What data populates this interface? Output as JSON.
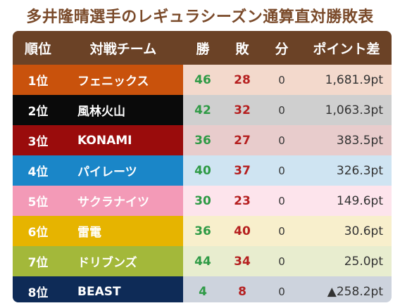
{
  "title": "多井隆晴選手のレギュラシーズン通算直対勝敗表",
  "headers": {
    "rank": "順位",
    "team": "対戦チーム",
    "win": "勝",
    "lose": "敗",
    "draw": "分",
    "points": "ポイント差"
  },
  "rows": [
    {
      "rank": "1位",
      "team": "フェニックス",
      "win": "46",
      "lose": "28",
      "draw": "0",
      "points": "1,681.9pt",
      "team_color": "#c9520c",
      "row_bg": "#f3d9cc"
    },
    {
      "rank": "2位",
      "team": "風林火山",
      "win": "42",
      "lose": "32",
      "draw": "0",
      "points": "1,063.3pt",
      "team_color": "#0a0a0a",
      "row_bg": "#cfcfcf"
    },
    {
      "rank": "3位",
      "team": "KONAMI",
      "win": "36",
      "lose": "27",
      "draw": "0",
      "points": "383.5pt",
      "team_color": "#9a0c0c",
      "row_bg": "#e8cccc"
    },
    {
      "rank": "4位",
      "team": "パイレーツ",
      "win": "40",
      "lose": "37",
      "draw": "0",
      "points": "326.3pt",
      "team_color": "#1a86c8",
      "row_bg": "#cfe4f2"
    },
    {
      "rank": "5位",
      "team": "サクラナイツ",
      "win": "30",
      "lose": "23",
      "draw": "0",
      "points": "149.6pt",
      "team_color": "#f39ab7",
      "row_bg": "#fde4ec"
    },
    {
      "rank": "6位",
      "team": "雷電",
      "win": "36",
      "lose": "40",
      "draw": "0",
      "points": "30.6pt",
      "team_color": "#e6b400",
      "row_bg": "#f8efcc"
    },
    {
      "rank": "7位",
      "team": "ドリブンズ",
      "win": "44",
      "lose": "34",
      "draw": "0",
      "points": "25.0pt",
      "team_color": "#a3b83a",
      "row_bg": "#e8edcf"
    },
    {
      "rank": "8位",
      "team": "BEAST",
      "win": "4",
      "lose": "8",
      "draw": "0",
      "points": "▲258.2pt",
      "team_color": "#0e2b57",
      "row_bg": "#cdd3dd"
    }
  ]
}
